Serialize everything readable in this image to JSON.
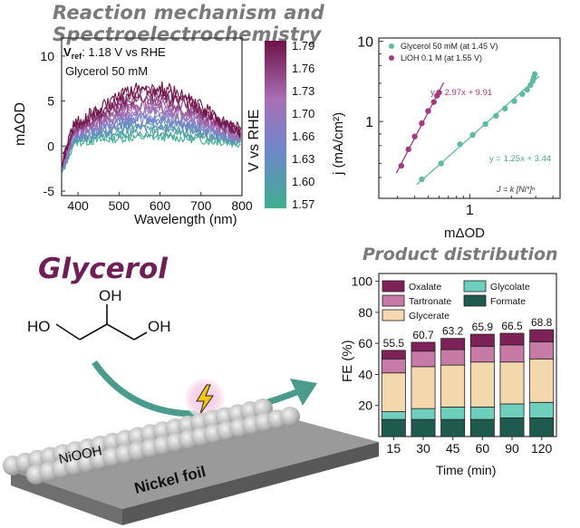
{
  "header": {
    "title": "Reaction mechanism and Spectroelectrochemistry",
    "product_title": "Product distribution"
  },
  "colors": {
    "oxalate": "#7d2158",
    "tartronate": "#c77aa6",
    "glycerate": "#f3d7ad",
    "glycolate": "#6fcfbd",
    "formate": "#1f5a4f",
    "glycerol_series": "#5fb9a4",
    "lioh_series": "#a43a80",
    "arrow": "#4a9b8c",
    "glycerol_label": "#6e1f55"
  },
  "chart_data": [
    {
      "type": "line",
      "annotation_vref_prefix": "V",
      "annotation_vref_sub": "ref",
      "annotation_vref_rest": ": 1.18 V vs RHE",
      "annotation_conc": "Glycerol 50 mM",
      "xlabel": "Wavelength (nm)",
      "ylabel": "mΔOD",
      "xlim": [
        360,
        800
      ],
      "ylim": [
        -5.5,
        12
      ],
      "xticks": [
        "400",
        "500",
        "600",
        "700",
        "800"
      ],
      "yticks": [
        "-5",
        "0",
        "5",
        "10"
      ],
      "colorbar_label": "V vs RHE",
      "colorbar_ticks": [
        "1.79",
        "1.76",
        "1.73",
        "1.70",
        "1.66",
        "1.63",
        "1.60",
        "1.57"
      ],
      "peak_wavelength": 580,
      "series_potentials": [
        1.57,
        1.59,
        1.6,
        1.62,
        1.63,
        1.65,
        1.66,
        1.68,
        1.7,
        1.72,
        1.73,
        1.75,
        1.76,
        1.78,
        1.79
      ],
      "series_peak_modd": [
        1.0,
        1.5,
        2.0,
        2.3,
        2.6,
        3.0,
        3.3,
        3.7,
        4.0,
        4.4,
        4.8,
        5.2,
        5.6,
        6.0,
        6.5
      ]
    },
    {
      "type": "scatter",
      "xscale": "log",
      "yscale": "log",
      "xlabel": "mΔOD",
      "ylabel": "j (mA/cm²)",
      "xticks": [
        "1"
      ],
      "yticks": [
        "1",
        "10"
      ],
      "legend_position": "top-left",
      "series": [
        {
          "name": "Glycerol 50 mM (at 1.45 V)",
          "fit": "y = 1.25x + 3.44",
          "x": [
            0.45,
            0.62,
            0.85,
            1.05,
            1.3,
            1.55,
            1.8,
            2.1,
            2.4,
            2.6,
            2.75,
            2.85,
            2.9,
            2.95
          ],
          "y": [
            0.19,
            0.3,
            0.52,
            0.68,
            0.93,
            1.18,
            1.45,
            1.8,
            2.2,
            2.5,
            2.85,
            3.2,
            3.5,
            3.9
          ]
        },
        {
          "name": "LiOH 0.1 M (at 1.55 V)",
          "fit": "y = 2.97x + 9.91",
          "x": [
            0.32,
            0.36,
            0.4,
            0.45,
            0.5,
            0.55,
            0.58,
            0.6
          ],
          "y": [
            0.28,
            0.45,
            0.65,
            0.95,
            1.35,
            1.75,
            2.1,
            2.3
          ]
        }
      ],
      "equation_note": "J = k [Ni*]ⁿ"
    },
    {
      "type": "bar",
      "stacked": true,
      "xlabel": "Time (min)",
      "ylabel": "FE (%)",
      "ylim": [
        0,
        105
      ],
      "yticks": [
        "20",
        "40",
        "60",
        "80",
        "100"
      ],
      "categories": [
        "15",
        "30",
        "45",
        "60",
        "90",
        "120"
      ],
      "totals": [
        "55.5",
        "60.7",
        "63.2",
        "65.9",
        "66.5",
        "68.8"
      ],
      "legend": [
        "Oxalate",
        "Glycolate",
        "Tartronate",
        "Formate",
        "Glycerate"
      ],
      "series": [
        {
          "name": "Formate",
          "values": [
            11,
            11,
            11,
            11,
            12,
            12
          ]
        },
        {
          "name": "Glycolate",
          "values": [
            5,
            7,
            8,
            8,
            9,
            10
          ]
        },
        {
          "name": "Glycerate",
          "values": [
            25,
            27,
            27,
            29,
            27,
            28
          ]
        },
        {
          "name": "Tartronate",
          "values": [
            9,
            10,
            10,
            10,
            11,
            11
          ]
        },
        {
          "name": "Oxalate",
          "values": [
            5.5,
            5.7,
            7.2,
            7.9,
            7.5,
            7.8
          ]
        }
      ]
    }
  ],
  "scheme": {
    "molecule_name": "Glycerol",
    "oh_top": "OH",
    "ho_left": "HO",
    "oh_right": "OH",
    "layer_label": "NiOOH",
    "substrate_label": "Nickel foil"
  }
}
